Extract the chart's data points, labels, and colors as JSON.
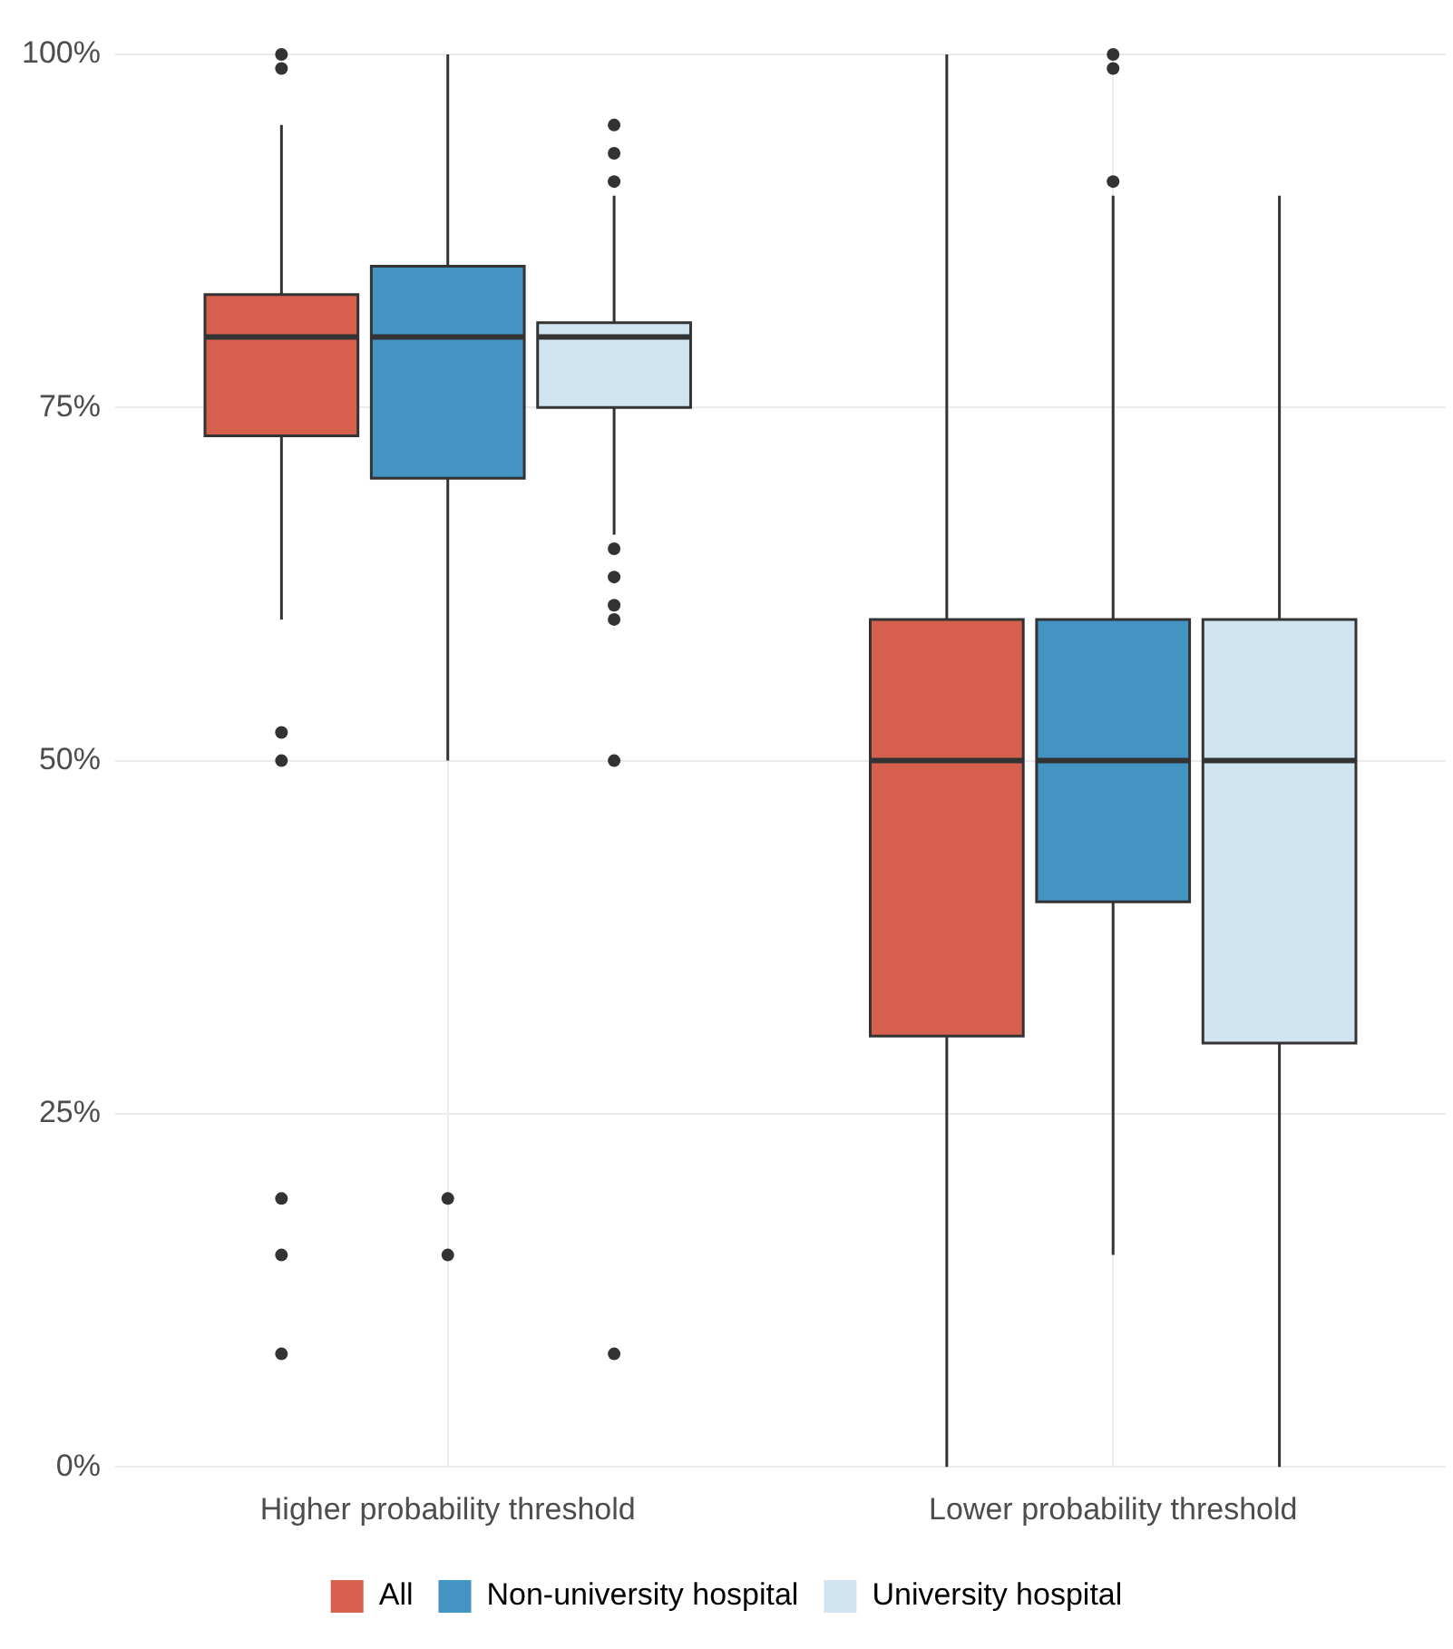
{
  "chart_data": {
    "type": "box",
    "categories": [
      "Higher probability threshold",
      "Lower probability threshold"
    ],
    "series": [
      {
        "name": "All",
        "color": "#d6604d",
        "boxes": [
          {
            "low": 60,
            "q1": 73,
            "median": 80,
            "q3": 83,
            "high": 95,
            "outliers": [
              100,
              99,
              52,
              50,
              19,
              15,
              8
            ]
          },
          {
            "low": 0,
            "q1": 30.5,
            "median": 50,
            "q3": 60,
            "high": 100
          }
        ]
      },
      {
        "name": "Non-university hospital",
        "color": "#4393c3",
        "boxes": [
          {
            "low": 50,
            "q1": 70,
            "median": 80,
            "q3": 85,
            "high": 100,
            "outliers": [
              19,
              15
            ]
          },
          {
            "low": 15,
            "q1": 40,
            "median": 50,
            "q3": 60,
            "high": 90,
            "outliers": [
              100,
              99,
              91
            ]
          }
        ]
      },
      {
        "name": "University hospital",
        "color": "#d1e5f0",
        "boxes": [
          {
            "low": 66,
            "q1": 75,
            "median": 80,
            "q3": 81,
            "high": 90,
            "outliers": [
              95,
              93,
              91,
              65,
              63,
              61,
              60,
              50,
              8
            ]
          },
          {
            "low": 0,
            "q1": 30,
            "median": 50,
            "q3": 60,
            "high": 90
          }
        ]
      }
    ],
    "ylim": [
      0,
      100
    ],
    "yticks": [
      {
        "value": 0,
        "label": "0%"
      },
      {
        "value": 25,
        "label": "25%"
      },
      {
        "value": 50,
        "label": "50%"
      },
      {
        "value": 75,
        "label": "75%"
      },
      {
        "value": 100,
        "label": "100%"
      }
    ],
    "grid": true,
    "legend": "bottom"
  }
}
